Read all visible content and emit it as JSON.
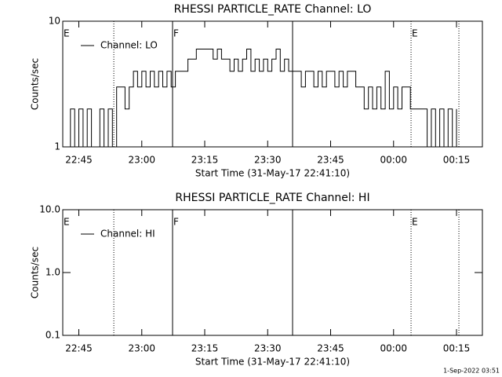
{
  "chart_data": [
    {
      "type": "line",
      "title": "RHESSI PARTICLE_RATE Channel: LO",
      "xlabel": "Start Time (31-May-17 22:41:10)",
      "ylabel": "Counts/sec",
      "log_y": true,
      "ylim": [
        1,
        10
      ],
      "yticks": [
        1,
        10
      ],
      "xlim": [
        "22:41:10",
        "00:21:10"
      ],
      "xticks": [
        "22:45",
        "23:00",
        "23:15",
        "23:30",
        "23:45",
        "00:00",
        "00:15"
      ],
      "legend": "upper left",
      "markers": [
        {
          "x": "22:53:20",
          "style": "dotted"
        },
        {
          "x": "23:07:20",
          "style": "solid"
        },
        {
          "x": "23:35:56",
          "style": "solid"
        },
        {
          "x": "00:04:10",
          "style": "dotted"
        },
        {
          "x": "00:15:34",
          "style": "dotted"
        }
      ],
      "annotations": [
        {
          "text": "E",
          "x": "22:41:10"
        },
        {
          "text": "F",
          "x": "23:07:20"
        },
        {
          "text": "E",
          "x": "00:04:10"
        }
      ],
      "series": [
        {
          "name": "Channel: LO",
          "color": "#000000",
          "x": [
            "22:42",
            "22:43",
            "22:44",
            "22:45",
            "22:46",
            "22:47",
            "22:48",
            "22:49",
            "22:50",
            "22:51",
            "22:52",
            "22:53",
            "22:54",
            "22:55",
            "22:56",
            "22:57",
            "22:58",
            "22:59",
            "23:00",
            "23:01",
            "23:02",
            "23:03",
            "23:04",
            "23:05",
            "23:06",
            "23:07",
            "23:08",
            "23:09",
            "23:10",
            "23:11",
            "23:12",
            "23:13",
            "23:14",
            "23:15",
            "23:16",
            "23:17",
            "23:18",
            "23:19",
            "23:20",
            "23:21",
            "23:22",
            "23:23",
            "23:24",
            "23:25",
            "23:26",
            "23:27",
            "23:28",
            "23:29",
            "23:30",
            "23:31",
            "23:32",
            "23:33",
            "23:34",
            "23:35",
            "23:36",
            "23:37",
            "23:38",
            "23:39",
            "23:40",
            "23:41",
            "23:42",
            "23:43",
            "23:44",
            "23:45",
            "23:46",
            "23:47",
            "23:48",
            "23:49",
            "23:50",
            "23:51",
            "23:52",
            "23:53",
            "23:54",
            "23:55",
            "23:56",
            "23:57",
            "23:58",
            "23:59",
            "00:00",
            "00:01",
            "00:02",
            "00:03",
            "00:04",
            "00:05",
            "00:06",
            "00:07",
            "00:08",
            "00:09",
            "00:10",
            "00:11",
            "00:12",
            "00:13",
            "00:14",
            "00:15"
          ],
          "values": [
            1,
            2,
            1,
            2,
            1,
            2,
            1,
            1,
            2,
            1,
            2,
            1,
            3,
            3,
            2,
            3,
            4,
            3,
            4,
            3,
            4,
            3,
            4,
            3,
            4,
            3,
            4,
            4,
            4,
            5,
            5,
            6,
            6,
            6,
            6,
            5,
            6,
            5,
            5,
            4,
            5,
            4,
            5,
            6,
            4,
            5,
            4,
            5,
            4,
            5,
            6,
            4,
            5,
            4,
            4,
            4,
            3,
            4,
            4,
            3,
            4,
            3,
            4,
            4,
            3,
            4,
            3,
            4,
            4,
            3,
            3,
            2,
            3,
            2,
            3,
            2,
            4,
            2,
            3,
            2,
            3,
            3,
            2,
            2,
            2,
            2,
            1,
            2,
            1,
            2,
            1,
            2,
            1,
            2
          ]
        }
      ]
    },
    {
      "type": "line",
      "title": "RHESSI PARTICLE_RATE Channel: HI",
      "xlabel": "Start Time (31-May-17 22:41:10)",
      "ylabel": "Counts/sec",
      "log_y": true,
      "ylim": [
        0.1,
        10
      ],
      "yticks": [
        {
          "value": 0.1,
          "label": "0.1"
        },
        {
          "value": 1,
          "label": "1.0"
        },
        {
          "value": 10,
          "label": "10.0"
        }
      ],
      "xlim": [
        "22:41:10",
        "00:21:10"
      ],
      "xticks": [
        "22:45",
        "23:00",
        "23:15",
        "23:30",
        "23:45",
        "00:00",
        "00:15"
      ],
      "legend": "upper left",
      "markers": [
        {
          "x": "22:53:20",
          "style": "dotted"
        },
        {
          "x": "23:07:20",
          "style": "solid"
        },
        {
          "x": "23:35:56",
          "style": "solid"
        },
        {
          "x": "00:04:10",
          "style": "dotted"
        },
        {
          "x": "00:15:34",
          "style": "dotted"
        }
      ],
      "annotations": [
        {
          "text": "E",
          "x": "22:41:10"
        },
        {
          "text": "F",
          "x": "23:07:20"
        },
        {
          "text": "E",
          "x": "00:04:10"
        }
      ],
      "series": [
        {
          "name": "Channel: HI",
          "color": "#000000",
          "x": [],
          "values": []
        }
      ]
    }
  ],
  "footer": "1-Sep-2022 03:51"
}
